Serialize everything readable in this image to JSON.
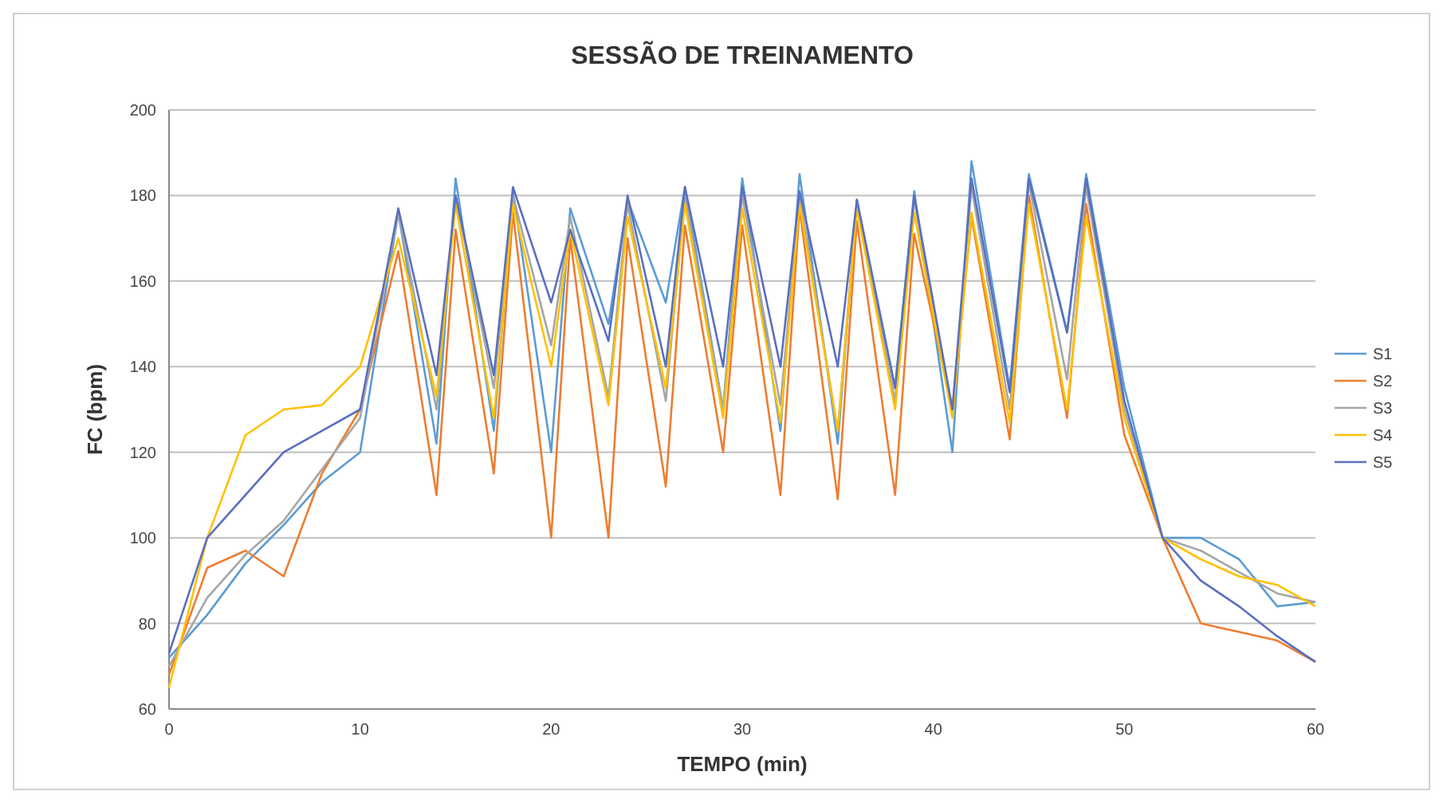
{
  "chart_data": {
    "type": "line",
    "title": "SESSÃO DE TREINAMENTO",
    "xlabel": "TEMPO (min)",
    "ylabel": "FC (bpm)",
    "x": [
      0,
      2,
      4,
      6,
      8,
      10,
      12,
      14,
      15,
      17,
      18,
      20,
      21,
      23,
      24,
      26,
      27,
      29,
      30,
      32,
      33,
      35,
      36,
      38,
      39,
      41,
      42,
      44,
      45,
      47,
      48,
      50,
      52,
      54,
      56,
      58,
      60
    ],
    "series": [
      {
        "name": "S1",
        "color": "#5b9bd5",
        "values": [
          72,
          82,
          94,
          103,
          113,
          120,
          176,
          122,
          184,
          125,
          181,
          120,
          177,
          150,
          179,
          155,
          182,
          130,
          184,
          125,
          185,
          122,
          179,
          135,
          181,
          120,
          188,
          135,
          185,
          148,
          185,
          135,
          100,
          100,
          95,
          84,
          85
        ]
      },
      {
        "name": "S2",
        "color": "#ed7d31",
        "values": [
          68,
          93,
          97,
          91,
          115,
          130,
          167,
          110,
          172,
          115,
          176,
          100,
          170,
          100,
          170,
          112,
          173,
          120,
          173,
          110,
          177,
          109,
          174,
          110,
          171,
          130,
          175,
          123,
          180,
          128,
          178,
          124,
          100,
          80,
          78,
          76,
          71
        ]
      },
      {
        "name": "S3",
        "color": "#a5a5a5",
        "values": [
          70,
          86,
          96,
          104,
          116,
          128,
          176,
          130,
          180,
          135,
          180,
          145,
          175,
          133,
          178,
          132,
          180,
          130,
          180,
          131,
          180,
          125,
          178,
          132,
          179,
          130,
          182,
          130,
          183,
          137,
          182,
          130,
          100,
          97,
          92,
          87,
          85
        ]
      },
      {
        "name": "S4",
        "color": "#ffc000",
        "values": [
          65,
          100,
          124,
          130,
          131,
          140,
          170,
          133,
          178,
          128,
          178,
          140,
          172,
          131,
          175,
          135,
          178,
          128,
          177,
          127,
          178,
          125,
          177,
          130,
          176,
          128,
          176,
          127,
          178,
          130,
          175,
          128,
          100,
          95,
          91,
          89,
          84
        ]
      },
      {
        "name": "S5",
        "color": "#5a6fbf",
        "values": [
          73,
          100,
          110,
          120,
          125,
          130,
          177,
          138,
          180,
          138,
          182,
          155,
          172,
          146,
          180,
          140,
          182,
          140,
          182,
          140,
          181,
          140,
          179,
          135,
          180,
          130,
          184,
          134,
          184,
          148,
          184,
          132,
          100,
          90,
          84,
          77,
          71
        ]
      }
    ],
    "xlim": [
      0,
      60
    ],
    "xticks": [
      0,
      10,
      20,
      30,
      40,
      50,
      60
    ],
    "ylim": [
      60,
      200
    ],
    "yticks": [
      60,
      80,
      100,
      120,
      140,
      160,
      180,
      200
    ],
    "grid": "y",
    "legend": "right",
    "marker": "none",
    "line_style": "solid"
  }
}
